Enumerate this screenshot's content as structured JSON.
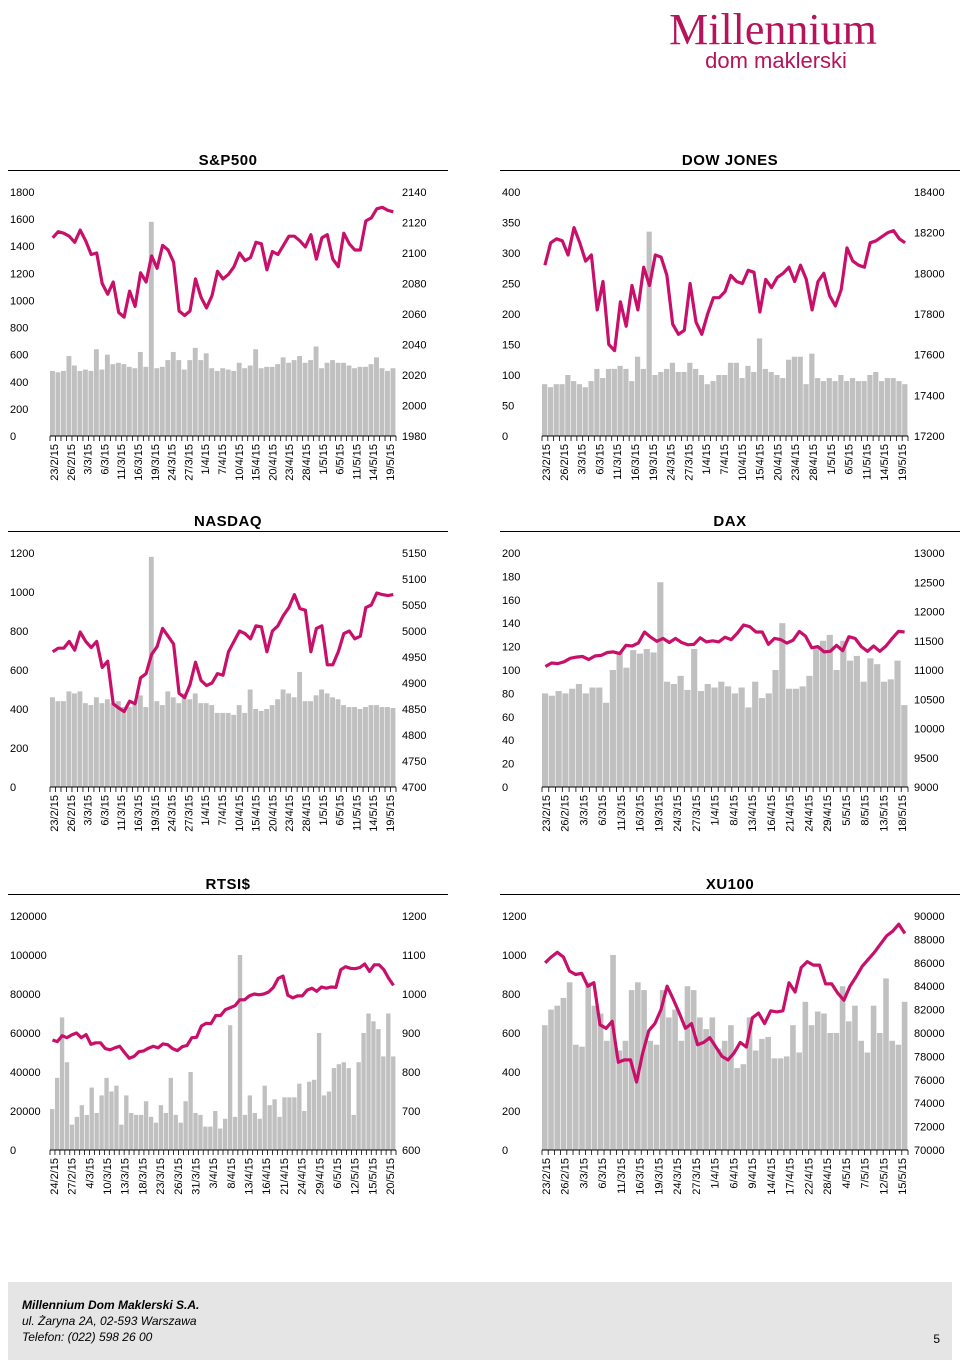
{
  "brand": {
    "name": "Millennium",
    "sub": "dom maklerski",
    "color": "#b5145a"
  },
  "footer": {
    "company": "Millennium Dom Maklerski S.A.",
    "address": "ul. Żaryna 2A, 02-593 Warszawa",
    "phone": "Telefon: (022) 598 26 00",
    "page": "5"
  },
  "colors": {
    "line": "#c8106a",
    "bar": "#c0c0c0",
    "axis": "#000000"
  },
  "chart_data": [
    {
      "id": "sp500",
      "type": "bar+line",
      "title": "S&P500",
      "ylim_left": [
        0,
        1800
      ],
      "yticks_left": [
        "0",
        "200",
        "400",
        "600",
        "800",
        "1000",
        "1200",
        "1400",
        "1600",
        "1800"
      ],
      "ylim_right": [
        1980,
        2140
      ],
      "yticks_right": [
        "1980",
        "2000",
        "2020",
        "2040",
        "2060",
        "2080",
        "2100",
        "2120",
        "2140"
      ],
      "xlabels": [
        "23/2/15",
        "26/2/15",
        "3/3/15",
        "6/3/15",
        "11/3/15",
        "16/3/15",
        "19/3/15",
        "24/3/15",
        "27/3/15",
        "1/4/15",
        "7/4/15",
        "10/4/15",
        "15/4/15",
        "20/4/15",
        "23/4/15",
        "28/4/15",
        "1/5/15",
        "6/5/15",
        "11/5/15",
        "14/5/15",
        "19/5/15"
      ],
      "bars": [
        480,
        470,
        480,
        590,
        520,
        480,
        490,
        480,
        640,
        490,
        600,
        530,
        540,
        530,
        510,
        500,
        620,
        510,
        1580,
        500,
        510,
        560,
        620,
        560,
        490,
        560,
        650,
        560,
        610,
        500,
        480,
        500,
        490,
        480,
        540,
        500,
        520,
        640,
        500,
        510,
        510,
        530,
        580,
        540,
        560,
        590,
        540,
        560,
        660,
        500,
        540,
        560,
        540,
        540,
        520,
        500,
        510,
        510,
        530,
        580,
        500,
        480,
        500
      ],
      "line": [
        2110,
        2114,
        2113,
        2111,
        2107,
        2115,
        2108,
        2099,
        2100,
        2080,
        2073,
        2081,
        2061,
        2058,
        2075,
        2065,
        2087,
        2081,
        2098,
        2090,
        2105,
        2102,
        2094,
        2062,
        2059,
        2062,
        2083,
        2071,
        2064,
        2072,
        2088,
        2083,
        2086,
        2091,
        2100,
        2095,
        2097,
        2107,
        2106,
        2089,
        2101,
        2099,
        2105,
        2111,
        2111,
        2108,
        2104,
        2112,
        2096,
        2110,
        2112,
        2096,
        2091,
        2113,
        2106,
        2102,
        2102,
        2121,
        2123,
        2129,
        2130,
        2128,
        2127
      ]
    },
    {
      "id": "dow",
      "type": "bar+line",
      "title": "DOW JONES",
      "ylim_left": [
        0,
        400
      ],
      "yticks_left": [
        "0",
        "50",
        "100",
        "150",
        "200",
        "250",
        "300",
        "350",
        "400"
      ],
      "ylim_right": [
        17200,
        18400
      ],
      "yticks_right": [
        "17200",
        "17400",
        "17600",
        "17800",
        "18000",
        "18200",
        "18400"
      ],
      "xlabels": [
        "23/2/15",
        "26/2/15",
        "3/3/15",
        "6/3/15",
        "11/3/15",
        "16/3/15",
        "19/3/15",
        "24/3/15",
        "27/3/15",
        "1/4/15",
        "7/4/15",
        "10/4/15",
        "15/4/15",
        "20/4/15",
        "23/4/15",
        "28/4/15",
        "1/5/15",
        "6/5/15",
        "11/5/15",
        "14/5/15",
        "19/5/15"
      ],
      "bars": [
        85,
        80,
        85,
        85,
        100,
        90,
        85,
        80,
        90,
        110,
        95,
        110,
        110,
        115,
        110,
        90,
        130,
        110,
        335,
        100,
        105,
        110,
        120,
        105,
        105,
        120,
        110,
        100,
        85,
        90,
        100,
        100,
        120,
        120,
        95,
        115,
        105,
        160,
        110,
        105,
        100,
        95,
        125,
        130,
        130,
        85,
        135,
        95,
        90,
        95,
        90,
        100,
        90,
        95,
        90,
        90,
        100,
        105,
        90,
        95,
        95,
        90,
        85
      ],
      "line": [
        18040,
        18150,
        18170,
        18160,
        18090,
        18225,
        18150,
        18060,
        18090,
        17820,
        17960,
        17650,
        17620,
        17860,
        17740,
        17940,
        17820,
        18030,
        17940,
        18090,
        18080,
        17990,
        17750,
        17700,
        17720,
        17950,
        17760,
        17700,
        17800,
        17880,
        17880,
        17910,
        17990,
        17960,
        17950,
        18015,
        18005,
        17810,
        17970,
        17930,
        17980,
        18000,
        18030,
        17960,
        18040,
        17970,
        17820,
        17960,
        18000,
        17890,
        17840,
        17920,
        18125,
        18060,
        18040,
        18030,
        18150,
        18160,
        18180,
        18200,
        18210,
        18170,
        18150
      ]
    },
    {
      "id": "nasdaq",
      "type": "bar+line",
      "title": "NASDAQ",
      "ylim_left": [
        0,
        1200
      ],
      "yticks_left": [
        "0",
        "200",
        "400",
        "600",
        "800",
        "1000",
        "1200"
      ],
      "ylim_right": [
        4700,
        5150
      ],
      "yticks_right": [
        "4700",
        "4750",
        "4800",
        "4850",
        "4900",
        "4950",
        "5000",
        "5050",
        "5100",
        "5150"
      ],
      "xlabels": [
        "23/2/15",
        "26/2/15",
        "3/3/15",
        "6/3/15",
        "11/3/15",
        "16/3/15",
        "19/3/15",
        "24/3/15",
        "27/3/15",
        "1/4/15",
        "7/4/15",
        "10/4/15",
        "15/4/15",
        "20/4/15",
        "23/4/15",
        "28/4/15",
        "1/5/15",
        "6/5/15",
        "11/5/15",
        "14/5/15",
        "19/5/15"
      ],
      "bars": [
        460,
        440,
        440,
        490,
        480,
        490,
        430,
        420,
        460,
        430,
        450,
        430,
        440,
        410,
        410,
        420,
        470,
        410,
        1180,
        440,
        420,
        490,
        460,
        430,
        480,
        450,
        480,
        430,
        430,
        420,
        380,
        380,
        380,
        370,
        420,
        380,
        500,
        400,
        390,
        400,
        420,
        450,
        500,
        480,
        460,
        590,
        440,
        440,
        470,
        500,
        480,
        460,
        450,
        420,
        410,
        410,
        400,
        410,
        420,
        420,
        410,
        410,
        405
      ],
      "line": [
        4960,
        4967,
        4967,
        4980,
        4963,
        4998,
        4980,
        4968,
        4980,
        4930,
        4942,
        4860,
        4852,
        4845,
        4865,
        4860,
        4910,
        4918,
        4955,
        4970,
        5005,
        4990,
        4975,
        4880,
        4872,
        4897,
        4940,
        4905,
        4895,
        4900,
        4918,
        4915,
        4960,
        4980,
        5000,
        4995,
        4985,
        5010,
        5008,
        4960,
        5000,
        5010,
        5030,
        5045,
        5070,
        5043,
        5040,
        4960,
        5005,
        5010,
        4935,
        4935,
        4960,
        4995,
        5000,
        4985,
        4990,
        5045,
        5050,
        5073,
        5070,
        5068,
        5070
      ]
    },
    {
      "id": "dax",
      "type": "bar+line",
      "title": "DAX",
      "ylim_left": [
        0,
        200
      ],
      "yticks_left": [
        "0",
        "20",
        "40",
        "60",
        "80",
        "100",
        "120",
        "140",
        "160",
        "180",
        "200"
      ],
      "ylim_right": [
        9000,
        13000
      ],
      "yticks_right": [
        "9000",
        "9500",
        "10000",
        "10500",
        "11000",
        "11500",
        "12000",
        "12500",
        "13000"
      ],
      "xlabels": [
        "23/2/15",
        "26/2/15",
        "3/3/15",
        "6/3/15",
        "11/3/15",
        "16/3/15",
        "19/3/15",
        "24/3/15",
        "27/3/15",
        "1/4/15",
        "8/4/15",
        "13/4/15",
        "16/4/15",
        "21/4/15",
        "24/4/15",
        "29/4/15",
        "5/5/15",
        "8/5/15",
        "13/5/15",
        "18/5/15"
      ],
      "bars": [
        80,
        78,
        82,
        80,
        84,
        88,
        80,
        85,
        85,
        72,
        100,
        115,
        102,
        117,
        114,
        118,
        115,
        175,
        90,
        88,
        95,
        83,
        118,
        82,
        88,
        85,
        90,
        86,
        80,
        85,
        68,
        90,
        76,
        80,
        100,
        140,
        84,
        84,
        86,
        95,
        120,
        125,
        130,
        100,
        125,
        108,
        112,
        90,
        110,
        105,
        90,
        92,
        108,
        70
      ],
      "line": [
        11060,
        11120,
        11110,
        11140,
        11200,
        11220,
        11230,
        11180,
        11240,
        11250,
        11300,
        11310,
        11280,
        11420,
        11410,
        11460,
        11650,
        11560,
        11490,
        11540,
        11470,
        11540,
        11470,
        11430,
        11440,
        11550,
        11480,
        11500,
        11480,
        11560,
        11520,
        11630,
        11770,
        11740,
        11650,
        11650,
        11440,
        11540,
        11520,
        11460,
        11510,
        11660,
        11580,
        11380,
        11400,
        11310,
        11320,
        11420,
        11330,
        11570,
        11540,
        11400,
        11320,
        11410,
        11320,
        11410,
        11540,
        11660,
        11650
      ]
    },
    {
      "id": "rtsi",
      "type": "bar+line",
      "title": "RTSI$",
      "ylim_left": [
        0,
        120000
      ],
      "yticks_left": [
        "0",
        "20000",
        "40000",
        "60000",
        "80000",
        "100000",
        "120000"
      ],
      "ylim_right": [
        600,
        1200
      ],
      "yticks_right": [
        "600",
        "700",
        "800",
        "900",
        "1000",
        "1100",
        "1200"
      ],
      "xlabels": [
        "24/2/15",
        "27/2/15",
        "4/3/15",
        "10/3/15",
        "13/3/15",
        "18/3/15",
        "23/3/15",
        "26/3/15",
        "31/3/15",
        "3/4/15",
        "8/4/15",
        "13/4/15",
        "16/4/15",
        "21/4/15",
        "24/4/15",
        "29/4/15",
        "6/5/15",
        "12/5/15",
        "15/5/15",
        "20/5/15"
      ],
      "bars": [
        21000,
        37000,
        68000,
        45000,
        13000,
        17000,
        23000,
        18000,
        32000,
        19000,
        28000,
        37000,
        30000,
        33000,
        13000,
        28000,
        19000,
        18000,
        18000,
        25000,
        17000,
        14000,
        23000,
        19000,
        37000,
        18000,
        14000,
        25000,
        40000,
        19000,
        18000,
        12000,
        12000,
        20000,
        11000,
        16000,
        64000,
        17000,
        100000,
        18000,
        28000,
        19000,
        16000,
        33000,
        23000,
        26000,
        17000,
        27000,
        27000,
        27000,
        34000,
        20000,
        35000,
        36000,
        60000,
        28000,
        30000,
        42000,
        44000,
        45000,
        42000,
        18000,
        45000,
        60000,
        70000,
        66000,
        62000,
        48000,
        70000,
        48000
      ],
      "line": [
        882,
        878,
        893,
        888,
        895,
        900,
        888,
        896,
        871,
        875,
        875,
        860,
        857,
        862,
        866,
        850,
        835,
        840,
        852,
        854,
        861,
        866,
        862,
        872,
        870,
        860,
        855,
        865,
        868,
        888,
        889,
        918,
        925,
        924,
        945,
        945,
        960,
        965,
        970,
        985,
        985,
        995,
        1000,
        998,
        1000,
        1005,
        1017,
        1040,
        1046,
        997,
        990,
        995,
        995,
        1010,
        1015,
        1007,
        1018,
        1015,
        1018,
        1017,
        1062,
        1070,
        1066,
        1065,
        1068,
        1077,
        1058,
        1075,
        1075,
        1062,
        1040,
        1022
      ]
    },
    {
      "id": "xu100",
      "type": "bar+line",
      "title": "XU100",
      "ylim_left": [
        0,
        1200
      ],
      "yticks_left": [
        "0",
        "200",
        "400",
        "600",
        "800",
        "1000",
        "1200"
      ],
      "ylim_right": [
        70000,
        90000
      ],
      "yticks_right": [
        "70000",
        "72000",
        "74000",
        "76000",
        "78000",
        "80000",
        "82000",
        "84000",
        "86000",
        "88000",
        "90000"
      ],
      "xlabels": [
        "23/2/15",
        "26/2/15",
        "3/3/15",
        "6/3/15",
        "11/3/15",
        "16/3/15",
        "19/3/15",
        "24/3/15",
        "27/3/15",
        "1/4/15",
        "6/4/15",
        "9/4/15",
        "14/4/15",
        "17/4/15",
        "22/4/15",
        "28/4/15",
        "4/5/15",
        "7/5/15",
        "12/5/15",
        "15/5/15"
      ],
      "bars": [
        640,
        720,
        740,
        780,
        860,
        540,
        530,
        860,
        740,
        700,
        560,
        1000,
        510,
        560,
        820,
        860,
        820,
        560,
        540,
        820,
        680,
        720,
        560,
        840,
        820,
        680,
        620,
        680,
        520,
        560,
        640,
        420,
        440,
        680,
        510,
        570,
        580,
        470,
        470,
        480,
        640,
        500,
        760,
        640,
        710,
        700,
        600,
        600,
        840,
        660,
        740,
        560,
        500,
        740,
        600,
        880,
        560,
        540,
        760
      ],
      "line": [
        86000,
        86500,
        86900,
        86500,
        85300,
        85000,
        85100,
        84000,
        84300,
        80700,
        80400,
        81000,
        77500,
        77700,
        77700,
        75800,
        78300,
        80200,
        80800,
        82000,
        84000,
        82900,
        81700,
        80400,
        80800,
        79000,
        79200,
        79600,
        78800,
        78000,
        77700,
        78300,
        79200,
        78800,
        81300,
        81700,
        80800,
        81900,
        81800,
        81900,
        84300,
        83500,
        85600,
        86100,
        85800,
        85800,
        84200,
        84200,
        83400,
        82800,
        84000,
        84800,
        85700,
        86300,
        86900,
        87600,
        88300,
        88700,
        89300,
        88500
      ]
    }
  ]
}
